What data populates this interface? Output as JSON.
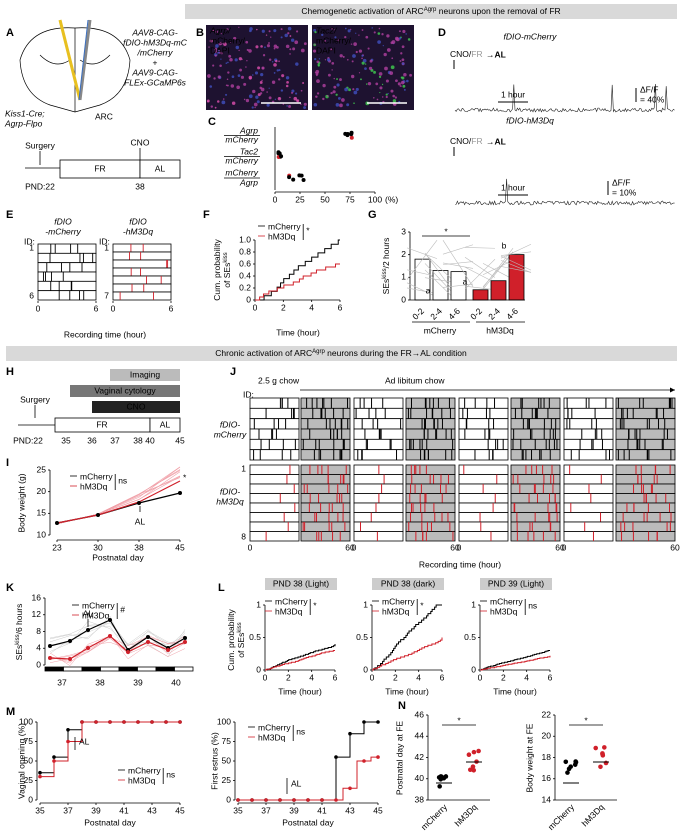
{
  "sections": {
    "s1": {
      "pre": "Chemogenetic activation of ARC",
      "sup": "Agrp",
      "post": " neurons upon the removal of FR"
    },
    "s2": {
      "pre": "Chronic activation of ARC",
      "sup": "Agrp",
      "post": " neurons during the FR→AL condition"
    }
  },
  "A": {
    "label": "A",
    "virus1": [
      "AAV8-CAG-",
      "fDIO-hM3Dq-mC",
      "/mCherry"
    ],
    "plus": "+",
    "virus2": [
      "AAV9-CAG-",
      "FLEx-GCaMP6s"
    ],
    "mouse": [
      "Kiss1-Cre;",
      "Agrp-Flpo"
    ],
    "region": "ARC",
    "timeline": {
      "surgery": "Surgery",
      "cno": "CNO",
      "fr": "FR",
      "al": "AL",
      "pnd": "PND:22",
      "end": "38"
    }
  },
  "B": {
    "label": "B",
    "left": [
      "Agrp/",
      "mCherry/",
      "DAPI"
    ],
    "right": [
      "Tac2/",
      "mCherry/",
      "DAPI"
    ]
  },
  "C": {
    "label": "C",
    "rows": [
      "Agrp",
      "mCherry",
      "Tac2",
      "mCherry",
      "mCherry",
      "Agrp"
    ],
    "xticks": [
      "0",
      "25",
      "50",
      "75",
      "100"
    ],
    "unit": "(%)"
  },
  "D": {
    "label": "D",
    "top": {
      "title": "fDIO-mCherry",
      "cno": "CNO/",
      "fr": "FR",
      "al": "→AL",
      "scale_x": "1 hour",
      "scale_y": [
        "ΔF/F",
        "= 40%"
      ]
    },
    "bottom": {
      "title": "fDIO-hM3Dq",
      "cno": "CNO/",
      "fr": "FR",
      "al": "→AL",
      "scale_x": "1 hour",
      "scale_y": [
        "ΔF/F",
        "= 10%"
      ]
    }
  },
  "E": {
    "label": "E",
    "id": "ID:",
    "groups": [
      {
        "name": [
          "fDIO",
          "-mCherry"
        ],
        "first": "1",
        "last": "6"
      },
      {
        "name": [
          "fDIO",
          "-hM3Dq"
        ],
        "first": "1",
        "last": "7"
      }
    ],
    "xticks": [
      "0",
      "6"
    ],
    "xlabel": "Recording time (hour)"
  },
  "F": {
    "label": "F",
    "legend": [
      "mCherry",
      "hM3Dq"
    ],
    "sig": "*",
    "ylabel": [
      "Cum. probability",
      "of SEs",
      "kiss"
    ],
    "yticks": [
      "0",
      "0.2",
      "0.4",
      "0.6",
      "0.8",
      "1.0"
    ],
    "xticks": [
      "0",
      "2",
      "4",
      "6"
    ],
    "xlabel": "Time (hour)"
  },
  "G": {
    "label": "G",
    "sig": "*",
    "letters": [
      "a",
      "a",
      "b"
    ],
    "ylabel": [
      "SEs",
      "kiss",
      "/2 hours"
    ],
    "yticks": [
      "0",
      "1",
      "2",
      "3"
    ],
    "xticks": [
      "0-2",
      "2-4",
      "4-6"
    ],
    "groups": [
      "mCherry",
      "hM3Dq"
    ]
  },
  "H": {
    "label": "H",
    "imaging": "Imaging",
    "cytology": "Vaginal cytology",
    "cno": "CNO",
    "surgery": "Surgery",
    "fr": "FR",
    "al": "AL",
    "ticks": [
      "PND:22",
      "35",
      "36",
      "37",
      "38",
      "40",
      "45"
    ]
  },
  "I": {
    "label": "I",
    "legend": [
      "mCherry",
      "hM3Dq"
    ],
    "sig": "ns",
    "star": "*",
    "al": "AL",
    "ylabel": "Body weight (g)",
    "yticks": [
      "10",
      "15",
      "20",
      "25"
    ],
    "xticks": [
      "23",
      "30",
      "38",
      "45"
    ],
    "xlabel": "Postnatal day"
  },
  "J": {
    "label": "J",
    "chow": "2.5 g chow",
    "adlib": "Ad libitum chow",
    "id": "ID:",
    "groups": [
      {
        "name": [
          "fDIO-",
          "mCherry"
        ]
      },
      {
        "name": [
          "fDIO-",
          "hM3Dq"
        ],
        "first": "1",
        "last": "8"
      }
    ],
    "xticks": [
      "0",
      "60",
      "0",
      "60",
      "0",
      "60",
      "0",
      "60"
    ],
    "xlabel": "Recording time (hour)"
  },
  "K": {
    "label": "K",
    "legend": [
      "mCherry",
      "hM3Dq"
    ],
    "sig": "#",
    "al": "AL",
    "ylabel": [
      "SEs",
      "kiss",
      "/6 hours"
    ],
    "yticks": [
      "0",
      "4",
      "8",
      "12",
      "16"
    ],
    "xticks": [
      "37",
      "38",
      "39",
      "40"
    ]
  },
  "L": {
    "label": "L",
    "titles": [
      "PND 38 (Light)",
      "PND 38 (dark)",
      "PND 39 (Light)"
    ],
    "legend": [
      "mCherry",
      "hM3Dq"
    ],
    "sigs": [
      "*",
      "*",
      "ns"
    ],
    "ylabel": [
      "Cum. probability",
      "of SEs",
      "kiss"
    ],
    "yticks": [
      "0",
      "0.5",
      "1"
    ],
    "xticks": [
      "0",
      "2",
      "4",
      "6"
    ],
    "xlabel": "Time (hour)"
  },
  "M": {
    "label": "M",
    "left": {
      "ylabel": "Vaginal opening (%)",
      "yticks": [
        "0",
        "25",
        "50",
        "75",
        "100"
      ],
      "xticks": [
        "35",
        "37",
        "39",
        "41",
        "43",
        "45"
      ],
      "xlabel": "Postnatal day",
      "al": "AL",
      "legend": [
        "mCherry",
        "hM3Dq"
      ],
      "sig": "ns"
    },
    "right": {
      "ylabel": "First estrus (%)",
      "yticks": [
        "0",
        "25",
        "50",
        "75",
        "100"
      ],
      "xticks": [
        "35",
        "37",
        "39",
        "41",
        "43",
        "45"
      ],
      "xlabel": "Postnatal day",
      "al": "AL",
      "legend": [
        "mCherry",
        "hM3Dq"
      ],
      "sig": "ns"
    }
  },
  "N": {
    "label": "N",
    "left": {
      "ylabel": "Postnatal day at FE",
      "yticks": [
        "38",
        "40",
        "42",
        "44",
        "46"
      ],
      "sig": "*"
    },
    "right": {
      "ylabel": "Body weight at FE",
      "yticks": [
        "14",
        "16",
        "18",
        "20",
        "22"
      ],
      "sig": "*"
    },
    "groups": [
      "mCherry",
      "hM3Dq"
    ]
  }
}
